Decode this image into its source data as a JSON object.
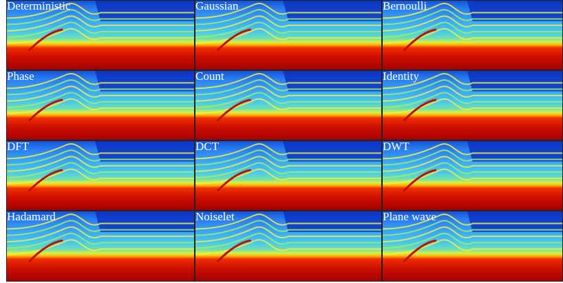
{
  "panels": [
    "Deterministic",
    "Gaussian",
    "Bernoulli",
    "Phase",
    "Count",
    "Identity",
    "DFT",
    "DCT",
    "DWT",
    "Hadamard",
    "Noiselet",
    "Plane wave"
  ]
}
